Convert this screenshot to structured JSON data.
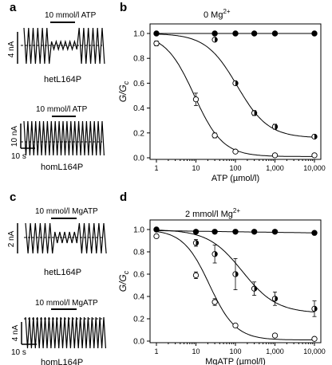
{
  "panels": {
    "a": {
      "letter": "a",
      "top": {
        "label": "hetL164P",
        "bar_label": "10 mmol/l ATP",
        "scale_y": "4 nA"
      },
      "bottom": {
        "label": "homL164P",
        "bar_label": "10 mmol/l ATP",
        "scale_y": "10 nA",
        "scale_x": "10 s"
      }
    },
    "b": {
      "letter": "b",
      "condition": "0 Mg",
      "condition_sup": "2+"
    },
    "c": {
      "letter": "c",
      "top": {
        "label": "hetL164P",
        "bar_label": "10 mmol/l MgATP",
        "scale_y": "2 nA"
      },
      "bottom": {
        "label": "homL164P",
        "bar_label": "10 mmol/l MgATP",
        "scale_y": "4 nA",
        "scale_x": "10 s"
      }
    },
    "d": {
      "letter": "d",
      "condition": "2 mmol/l  Mg",
      "condition_sup": "2+"
    }
  },
  "chart_data": [
    {
      "panel": "b",
      "type": "scatter",
      "xscale": "log",
      "xlabel": "ATP (µmol/l)",
      "ylabel": "G/G",
      "ylabel_sub": "c",
      "xlim": [
        1,
        10000
      ],
      "ylim": [
        0,
        1.0
      ],
      "xticks": [
        1,
        10,
        100,
        1000,
        10000
      ],
      "xtick_labels": [
        "1",
        "10",
        "100",
        "1,000",
        "10,000"
      ],
      "yticks": [
        0,
        0.2,
        0.4,
        0.6,
        0.8,
        1.0
      ],
      "ytick_labels": [
        "0.0",
        "0.2",
        "0.4",
        "0.6",
        "0.8",
        "1.0"
      ],
      "series": [
        {
          "style": "filled",
          "x": [
            1,
            30,
            100,
            300,
            1000,
            10000
          ],
          "y": [
            1.0,
            1.0,
            1.0,
            1.0,
            1.0,
            1.0
          ],
          "err": [
            0,
            0,
            0,
            0,
            0,
            0
          ],
          "fit": {
            "ic50": 1000000000.0,
            "h": 1,
            "a": 0
          }
        },
        {
          "style": "half",
          "x": [
            30,
            100,
            300,
            1000,
            10000
          ],
          "y": [
            0.95,
            0.6,
            0.36,
            0.25,
            0.17
          ],
          "err": [
            0,
            0,
            0.02,
            0.02,
            0.01
          ],
          "fit": {
            "ic50": 110,
            "h": 1.1,
            "a": 0.16
          }
        },
        {
          "style": "open",
          "x": [
            1,
            10,
            30,
            100,
            1000,
            10000
          ],
          "y": [
            0.92,
            0.47,
            0.18,
            0.05,
            0.02,
            0.02
          ],
          "err": [
            0.02,
            0.05,
            0.02,
            0.01,
            0.01,
            0.01
          ],
          "fit": {
            "ic50": 9,
            "h": 1.2,
            "a": 0.01
          }
        }
      ]
    },
    {
      "panel": "d",
      "type": "scatter",
      "xscale": "log",
      "xlabel": "MgATP (µmol/l)",
      "ylabel": "G/G",
      "ylabel_sub": "c",
      "xlim": [
        1,
        10000
      ],
      "ylim": [
        0,
        1.0
      ],
      "xticks": [
        1,
        10,
        100,
        1000,
        10000
      ],
      "xtick_labels": [
        "1",
        "10",
        "100",
        "1,000",
        "10,000"
      ],
      "yticks": [
        0,
        0.2,
        0.4,
        0.6,
        0.8,
        1.0
      ],
      "ytick_labels": [
        "0.0",
        "0.2",
        "0.4",
        "0.6",
        "0.8",
        "1.0"
      ],
      "series": [
        {
          "style": "filled",
          "x": [
            1,
            10,
            30,
            100,
            300,
            1000,
            10000
          ],
          "y": [
            1.0,
            0.98,
            0.98,
            0.98,
            0.98,
            0.98,
            0.97
          ],
          "err": [
            0,
            0,
            0,
            0,
            0,
            0,
            0
          ],
          "fit": {
            "ic50": 1000000000.0,
            "h": 1,
            "a": 0,
            "top": 0.99,
            "slope": -0.005
          }
        },
        {
          "style": "half",
          "x": [
            10,
            30,
            100,
            300,
            1000,
            10000
          ],
          "y": [
            0.88,
            0.78,
            0.6,
            0.47,
            0.38,
            0.29
          ],
          "err": [
            0.03,
            0.08,
            0.14,
            0.06,
            0.06,
            0.07
          ],
          "fit": {
            "ic50": 150,
            "h": 1.0,
            "a": 0.25
          }
        },
        {
          "style": "open",
          "x": [
            1,
            10,
            30,
            100,
            1000,
            10000
          ],
          "y": [
            0.94,
            0.59,
            0.35,
            0.14,
            0.05,
            0.02
          ],
          "err": [
            0.01,
            0.03,
            0.03,
            0.01,
            0.01,
            0.01
          ],
          "fit": {
            "ic50": 22,
            "h": 1.3,
            "a": 0.01
          }
        }
      ]
    }
  ]
}
